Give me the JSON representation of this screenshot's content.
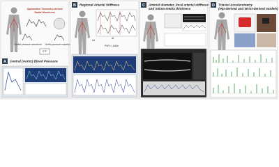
{
  "panels": [
    {
      "letter": "A",
      "title": "Central (Aortic) Blood Pressure",
      "labels": [
        "Applanation Tonometry-derived",
        "Radial Waveforms",
        "Radial pressure waveform",
        "Aortic pressure waveform",
        "GTF"
      ]
    },
    {
      "letter": "B",
      "title": "Regional Arterial Stiffness",
      "labels": [
        "Δd",
        "Δt",
        "PWV = Δd/Δt"
      ]
    },
    {
      "letter": "C",
      "title": "Arterial diameter, local arterial stiffness",
      "subtitle": "and intima-media thickness"
    },
    {
      "letter": "D",
      "title": "Triaxial Accelerometry",
      "subtitle": "(Hip-derived and Wrist-derived models)"
    }
  ]
}
